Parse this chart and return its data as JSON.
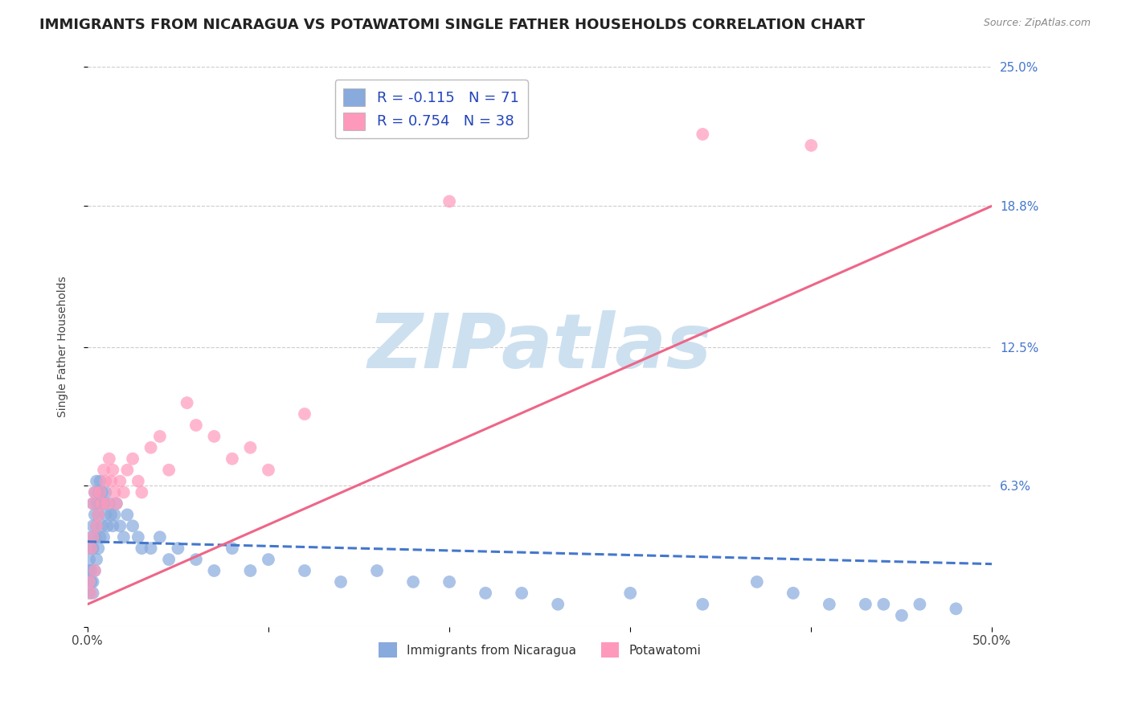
{
  "title": "IMMIGRANTS FROM NICARAGUA VS POTAWATOMI SINGLE FATHER HOUSEHOLDS CORRELATION CHART",
  "source": "Source: ZipAtlas.com",
  "ylabel": "Single Father Households",
  "x_min": 0.0,
  "x_max": 0.5,
  "y_min": 0.0,
  "y_max": 0.25,
  "y_ticks": [
    0.0,
    0.063,
    0.125,
    0.188,
    0.25
  ],
  "y_tick_labels": [
    "",
    "6.3%",
    "12.5%",
    "18.8%",
    "25.0%"
  ],
  "x_ticks": [
    0.0,
    0.1,
    0.2,
    0.3,
    0.4,
    0.5
  ],
  "x_tick_labels": [
    "0.0%",
    "",
    "",
    "",
    "",
    "50.0%"
  ],
  "title_fontsize": 13,
  "axis_label_fontsize": 10,
  "tick_fontsize": 11,
  "watermark_text": "ZIPatlas",
  "watermark_color": "#cce0f0",
  "blue_scatter_x": [
    0.001,
    0.001,
    0.001,
    0.002,
    0.002,
    0.002,
    0.002,
    0.003,
    0.003,
    0.003,
    0.003,
    0.003,
    0.004,
    0.004,
    0.004,
    0.004,
    0.005,
    0.005,
    0.005,
    0.005,
    0.006,
    0.006,
    0.006,
    0.007,
    0.007,
    0.007,
    0.008,
    0.008,
    0.009,
    0.009,
    0.01,
    0.01,
    0.011,
    0.012,
    0.013,
    0.014,
    0.015,
    0.016,
    0.018,
    0.02,
    0.022,
    0.025,
    0.028,
    0.03,
    0.035,
    0.04,
    0.045,
    0.05,
    0.06,
    0.07,
    0.08,
    0.09,
    0.1,
    0.12,
    0.14,
    0.16,
    0.18,
    0.2,
    0.22,
    0.24,
    0.26,
    0.3,
    0.34,
    0.37,
    0.39,
    0.41,
    0.43,
    0.44,
    0.45,
    0.46,
    0.48
  ],
  "blue_scatter_y": [
    0.025,
    0.03,
    0.015,
    0.035,
    0.025,
    0.04,
    0.02,
    0.045,
    0.035,
    0.055,
    0.02,
    0.015,
    0.05,
    0.04,
    0.06,
    0.025,
    0.055,
    0.045,
    0.065,
    0.03,
    0.06,
    0.05,
    0.035,
    0.055,
    0.065,
    0.04,
    0.06,
    0.045,
    0.055,
    0.04,
    0.05,
    0.06,
    0.045,
    0.055,
    0.05,
    0.045,
    0.05,
    0.055,
    0.045,
    0.04,
    0.05,
    0.045,
    0.04,
    0.035,
    0.035,
    0.04,
    0.03,
    0.035,
    0.03,
    0.025,
    0.035,
    0.025,
    0.03,
    0.025,
    0.02,
    0.025,
    0.02,
    0.02,
    0.015,
    0.015,
    0.01,
    0.015,
    0.01,
    0.02,
    0.015,
    0.01,
    0.01,
    0.01,
    0.005,
    0.01,
    0.008
  ],
  "pink_scatter_x": [
    0.001,
    0.002,
    0.002,
    0.003,
    0.003,
    0.004,
    0.004,
    0.005,
    0.006,
    0.007,
    0.008,
    0.009,
    0.01,
    0.011,
    0.012,
    0.013,
    0.014,
    0.015,
    0.016,
    0.018,
    0.02,
    0.022,
    0.025,
    0.028,
    0.03,
    0.035,
    0.04,
    0.045,
    0.055,
    0.06,
    0.07,
    0.08,
    0.09,
    0.1,
    0.12,
    0.2,
    0.34,
    0.4
  ],
  "pink_scatter_y": [
    0.02,
    0.035,
    0.015,
    0.04,
    0.055,
    0.025,
    0.06,
    0.045,
    0.05,
    0.06,
    0.055,
    0.07,
    0.065,
    0.055,
    0.075,
    0.065,
    0.07,
    0.06,
    0.055,
    0.065,
    0.06,
    0.07,
    0.075,
    0.065,
    0.06,
    0.08,
    0.085,
    0.07,
    0.1,
    0.09,
    0.085,
    0.075,
    0.08,
    0.07,
    0.095,
    0.19,
    0.22,
    0.215
  ],
  "blue_line_x": [
    0.0,
    0.5
  ],
  "blue_line_y": [
    0.038,
    0.028
  ],
  "pink_line_x": [
    0.0,
    0.5
  ],
  "pink_line_y": [
    0.01,
    0.188
  ],
  "blue_line_color": "#4477cc",
  "pink_line_color": "#ee6688",
  "blue_scatter_color": "#88aadd",
  "pink_scatter_color": "#ff99bb",
  "grid_color": "#cccccc",
  "bg_color": "#ffffff",
  "right_tick_color": "#4477cc",
  "legend1_label": "R = -0.115   N = 71",
  "legend2_label": "R = 0.754   N = 38",
  "legend_bot1": "Immigrants from Nicaragua",
  "legend_bot2": "Potawatomi"
}
